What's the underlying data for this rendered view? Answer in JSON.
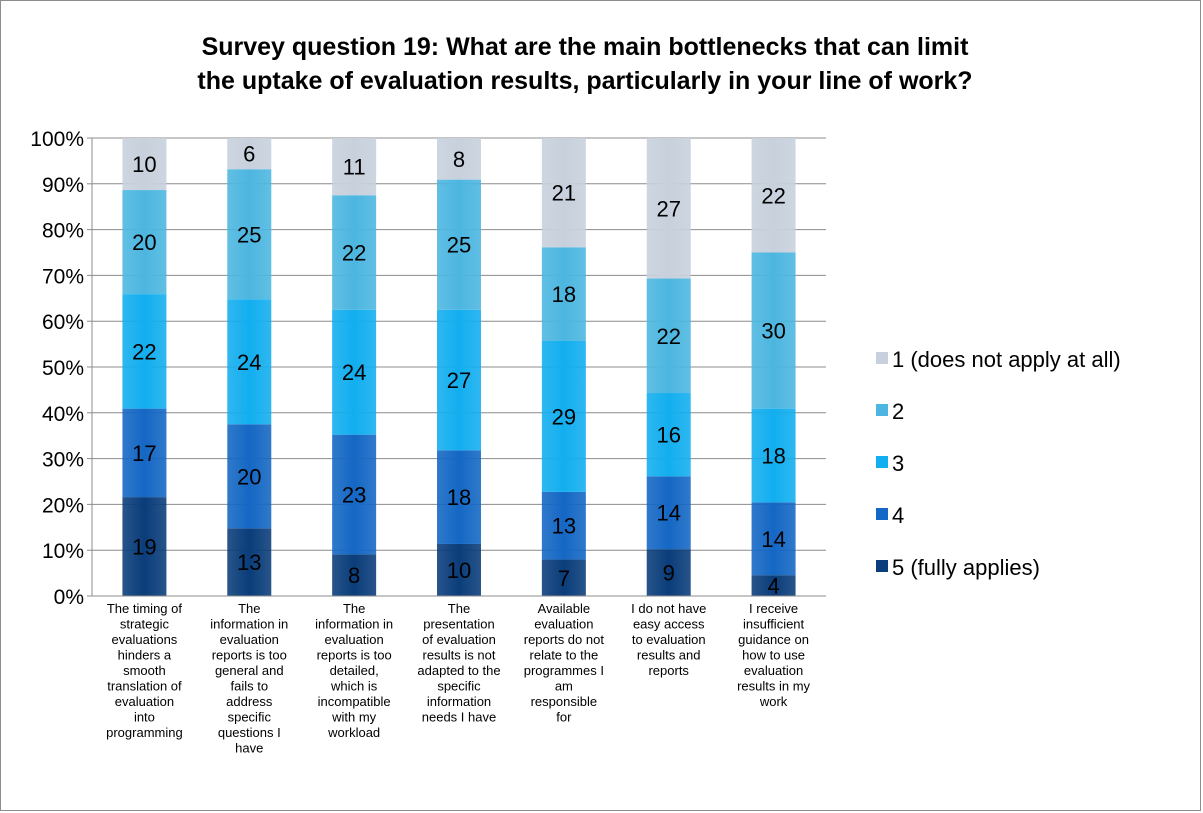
{
  "chart_data": {
    "type": "bar",
    "stacked": true,
    "percent_stacked": true,
    "title_lines": [
      "Survey question 19: What are the main bottlenecks that can limit",
      "the uptake of evaluation results, particularly in your line of work?"
    ],
    "y_ticks": [
      "0%",
      "10%",
      "20%",
      "30%",
      "40%",
      "50%",
      "60%",
      "70%",
      "80%",
      "90%",
      "100%"
    ],
    "ylim": [
      0,
      100
    ],
    "grid": true,
    "legend_position": "right",
    "categories": [
      [
        "The timing of",
        "strategic",
        "evaluations",
        "hinders a",
        "smooth",
        "translation of",
        "evaluation",
        "into",
        "programming"
      ],
      [
        "The",
        "information in",
        "evaluation",
        "reports is too",
        "general and",
        "fails to",
        "address",
        "specific",
        "questions I",
        "have"
      ],
      [
        "The",
        "information in",
        "evaluation",
        "reports is too",
        "detailed,",
        "which is",
        "incompatible",
        "with my",
        "workload"
      ],
      [
        "The",
        "presentation",
        "of evaluation",
        "results is not",
        "adapted to the",
        "specific",
        "information",
        "needs I have"
      ],
      [
        "Available",
        "evaluation",
        "reports do not",
        "relate to the",
        "programmes I",
        "am",
        "responsible",
        "for"
      ],
      [
        "I do not have",
        "easy access",
        "to evaluation",
        "results and",
        "reports"
      ],
      [
        "I receive",
        "insufficient",
        "guidance on",
        "how to use",
        "evaluation",
        "results in my",
        "work"
      ]
    ],
    "series": [
      {
        "name": "5 (fully applies)",
        "color": "#0a3d7a",
        "values": [
          19,
          13,
          8,
          10,
          7,
          9,
          4
        ]
      },
      {
        "name": "4",
        "color": "#1467c4",
        "values": [
          17,
          20,
          23,
          18,
          13,
          14,
          14
        ]
      },
      {
        "name": "3",
        "color": "#12aeef",
        "values": [
          22,
          24,
          24,
          27,
          29,
          16,
          18
        ]
      },
      {
        "name": "2",
        "color": "#4cb6e0",
        "values": [
          20,
          25,
          22,
          25,
          18,
          22,
          30
        ]
      },
      {
        "name": "1 (does not apply at all)",
        "color": "#c7d0dc",
        "values": [
          10,
          6,
          11,
          8,
          21,
          27,
          22
        ]
      }
    ],
    "legend_order": [
      "1 (does not apply at all)",
      "2",
      "3",
      "4",
      "5 (fully applies)"
    ]
  }
}
